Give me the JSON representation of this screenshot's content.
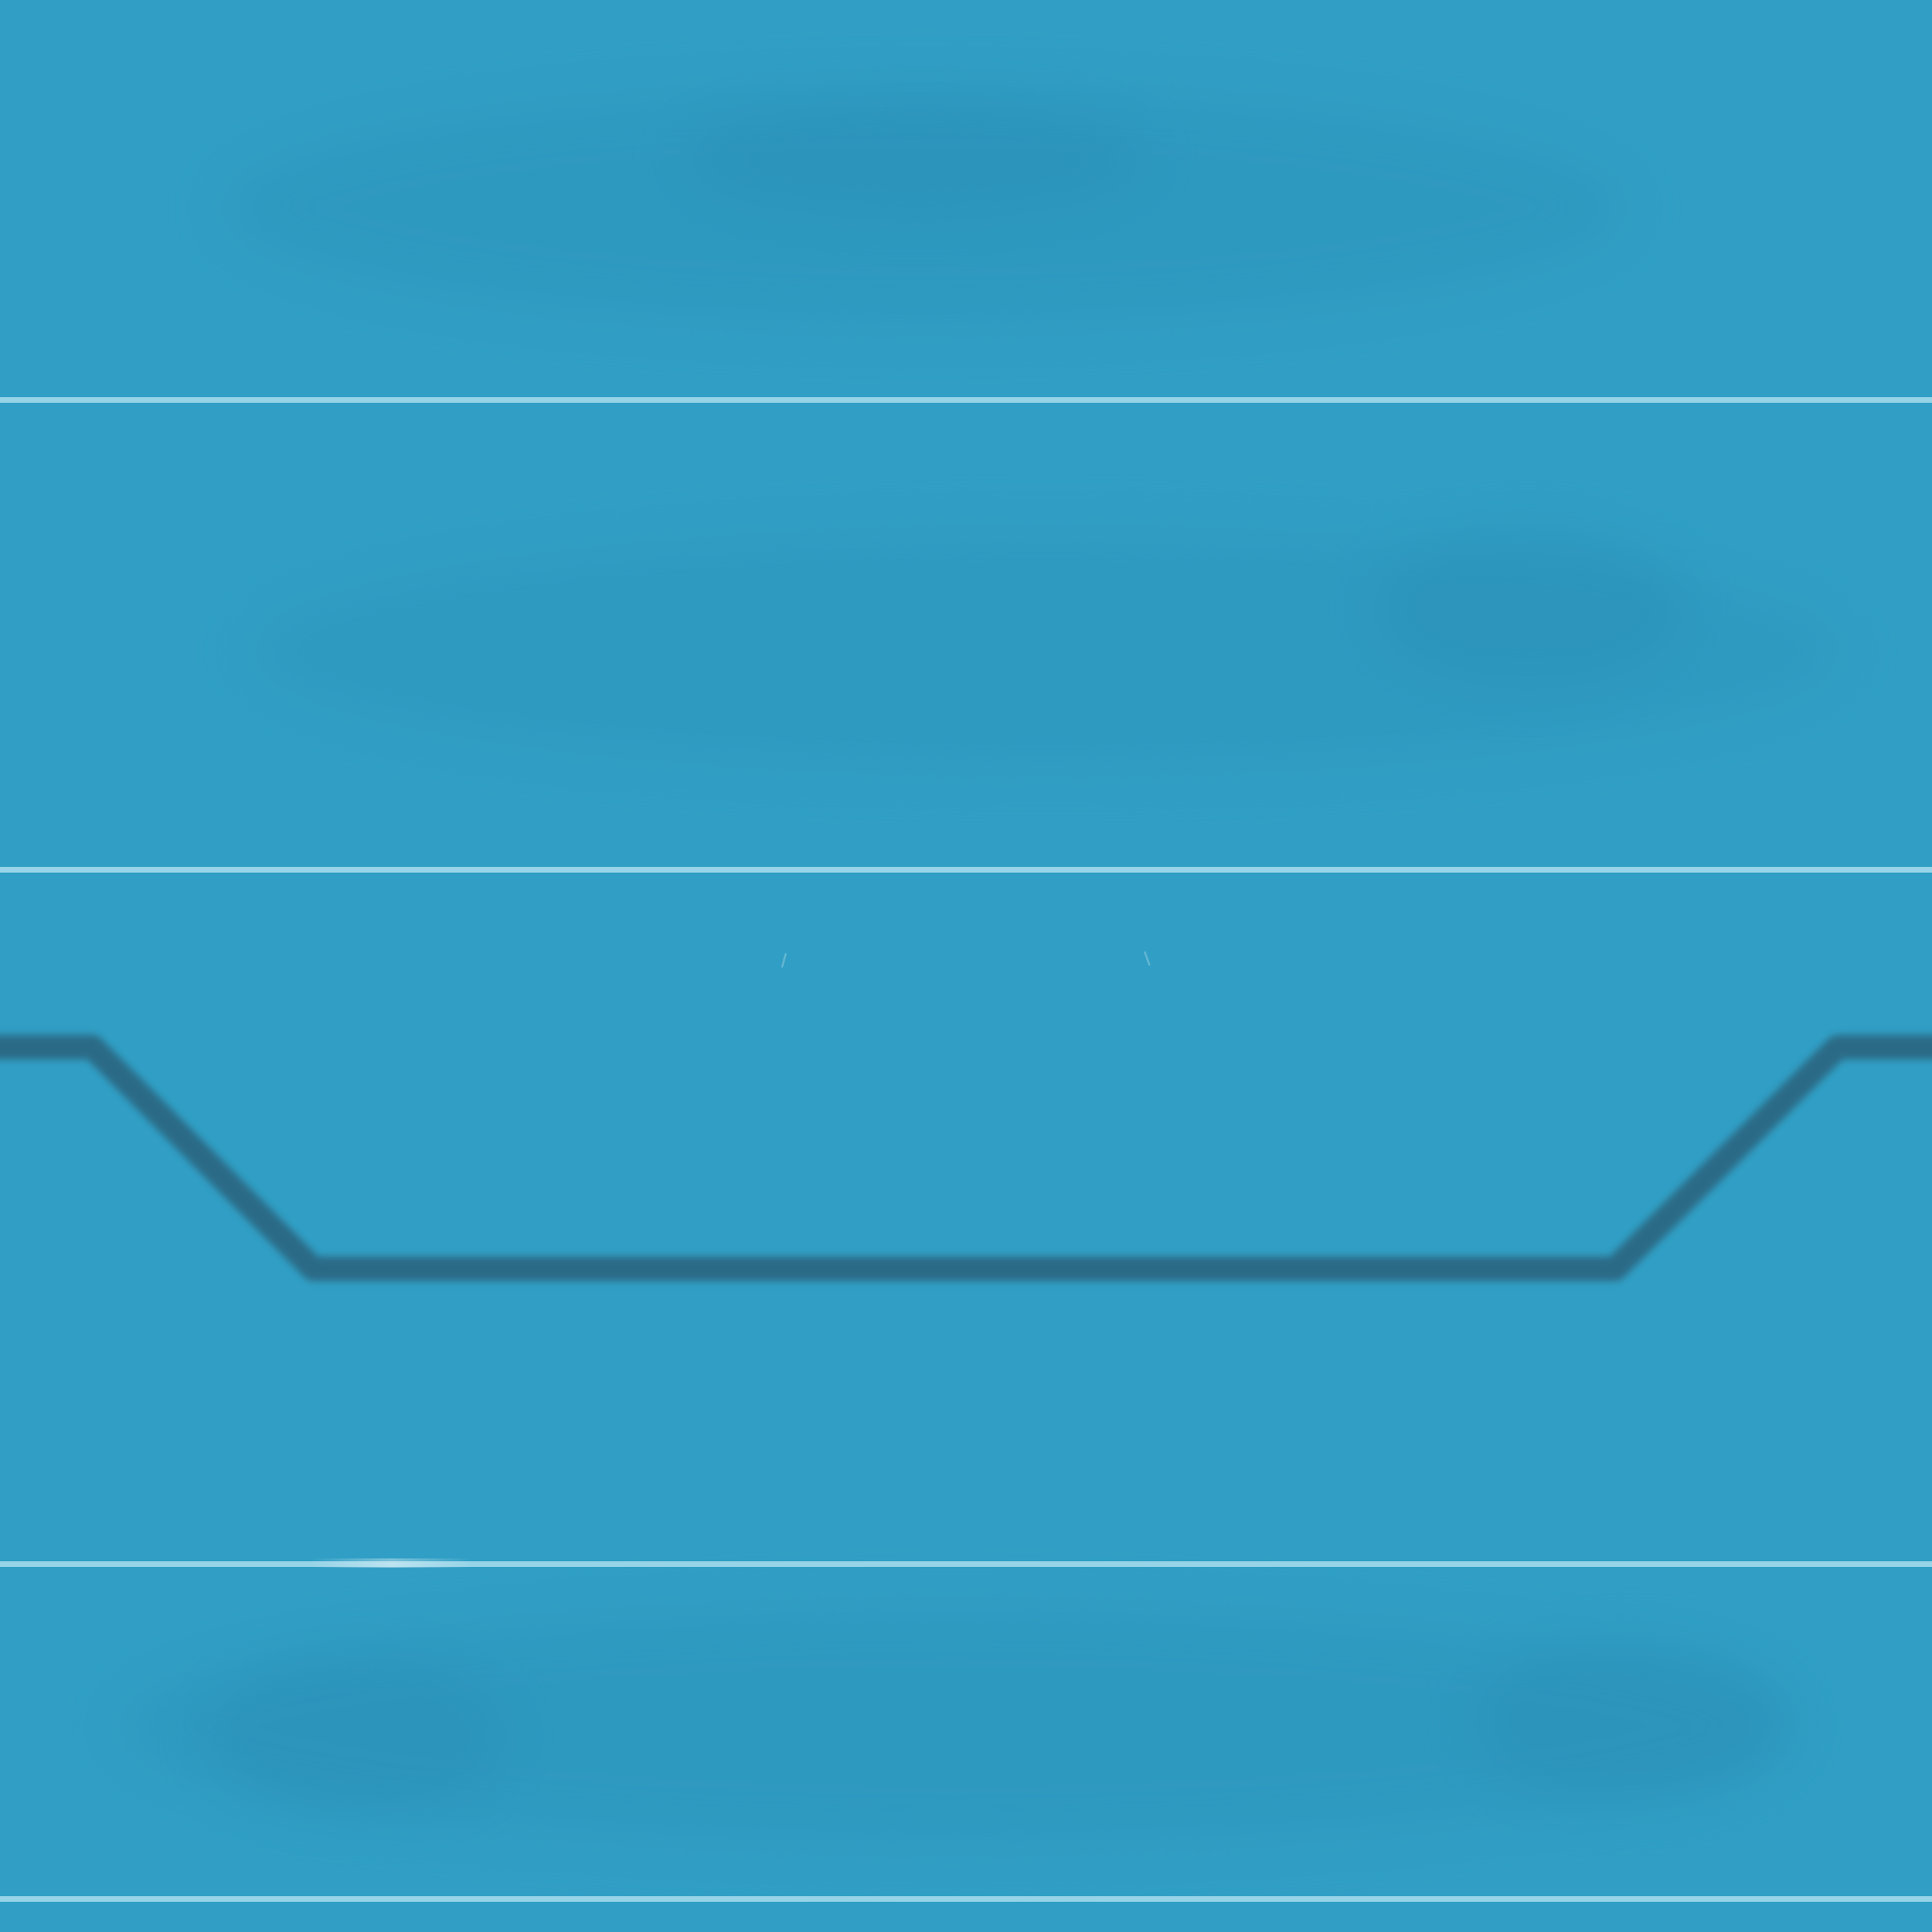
{
  "colors": {
    "water": "#319fc5",
    "lane_line": "#a9dded",
    "track_line": "#2a6a86",
    "smudge": "#2b8fb6"
  },
  "scene": {
    "lane_line_count": 4,
    "track_line": "visible"
  }
}
